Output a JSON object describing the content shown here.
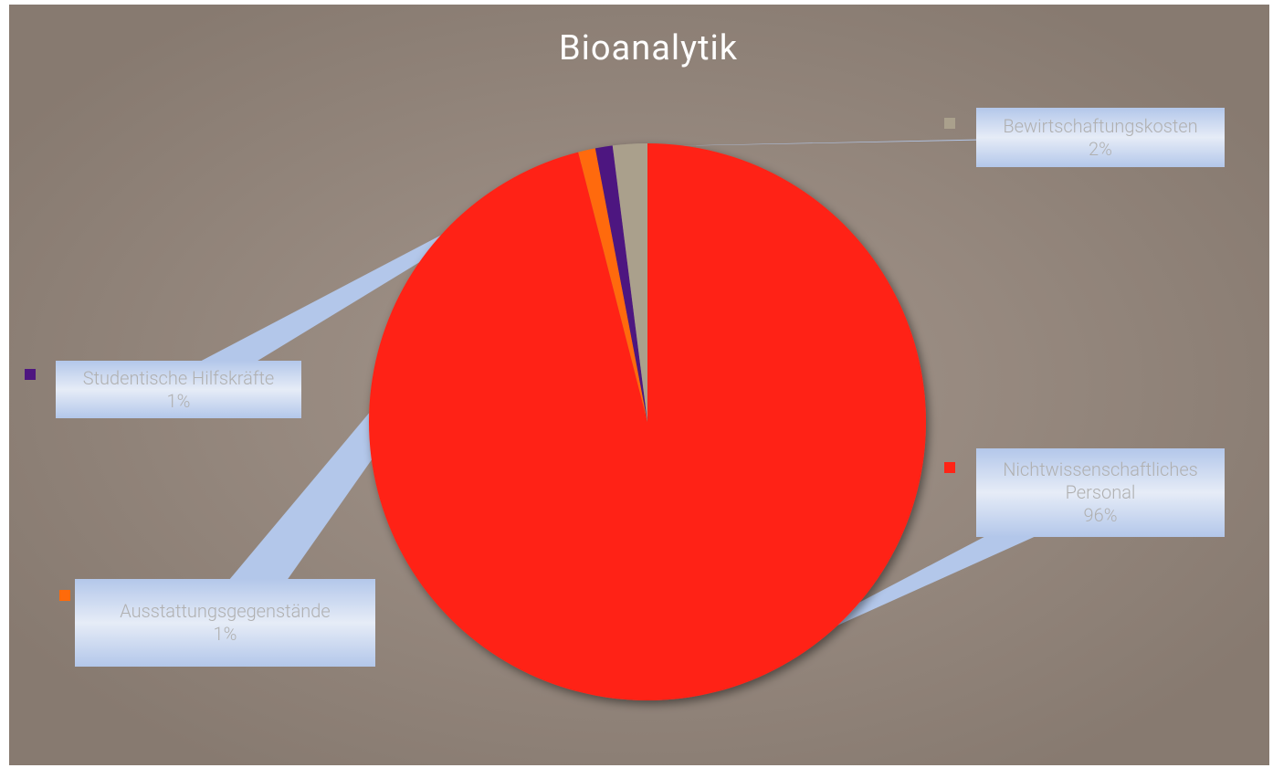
{
  "chart_data": {
    "type": "pie",
    "title": "Bioanalytik",
    "categories": [
      "Nichtwissenschaftliches Personal",
      "Ausstattungsgegenstände",
      "Studentische Hilfskräfte",
      "Bewirtschaftungskosten"
    ],
    "values": [
      96,
      1,
      1,
      2
    ],
    "value_labels": [
      "96%",
      "1%",
      "1%",
      "2%"
    ],
    "colors": [
      "#ff2416",
      "#ff6a0a",
      "#4e1680",
      "#aaa08c"
    ]
  }
}
